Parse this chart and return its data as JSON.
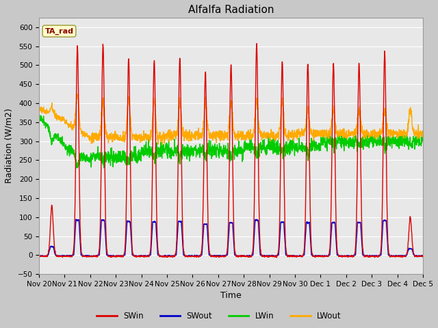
{
  "title": "Alfalfa Radiation",
  "xlabel": "Time",
  "ylabel": "Radiation (W/m2)",
  "ylim": [
    -50,
    625
  ],
  "yticks": [
    -50,
    0,
    50,
    100,
    150,
    200,
    250,
    300,
    350,
    400,
    450,
    500,
    550,
    600
  ],
  "fig_bg": "#d0d0d0",
  "axes_bg": "#e8e8e8",
  "grid_color": "#ffffff",
  "title_fontsize": 11,
  "label_fontsize": 9,
  "tick_fontsize": 7.5,
  "series": {
    "SWin": {
      "color": "#dd0000",
      "lw": 1.0
    },
    "SWout": {
      "color": "#0000cc",
      "lw": 1.0
    },
    "LWin": {
      "color": "#00cc00",
      "lw": 1.0
    },
    "LWout": {
      "color": "#ffaa00",
      "lw": 1.0
    }
  },
  "legend_label": "TA_rad",
  "xtick_labels": [
    "Nov 20",
    "Nov 21",
    "Nov 22",
    "Nov 23",
    "Nov 24",
    "Nov 25",
    "Nov 26",
    "Nov 27",
    "Nov 28",
    "Nov 29",
    "Nov 30",
    "Dec 1",
    "Dec 2",
    "Dec 3",
    "Dec 4",
    "Dec 5"
  ],
  "num_days": 15,
  "pts_per_day": 144,
  "swin_peaks": [
    130,
    550,
    555,
    520,
    515,
    520,
    480,
    500,
    555,
    510,
    505,
    505,
    505,
    535,
    100
  ]
}
